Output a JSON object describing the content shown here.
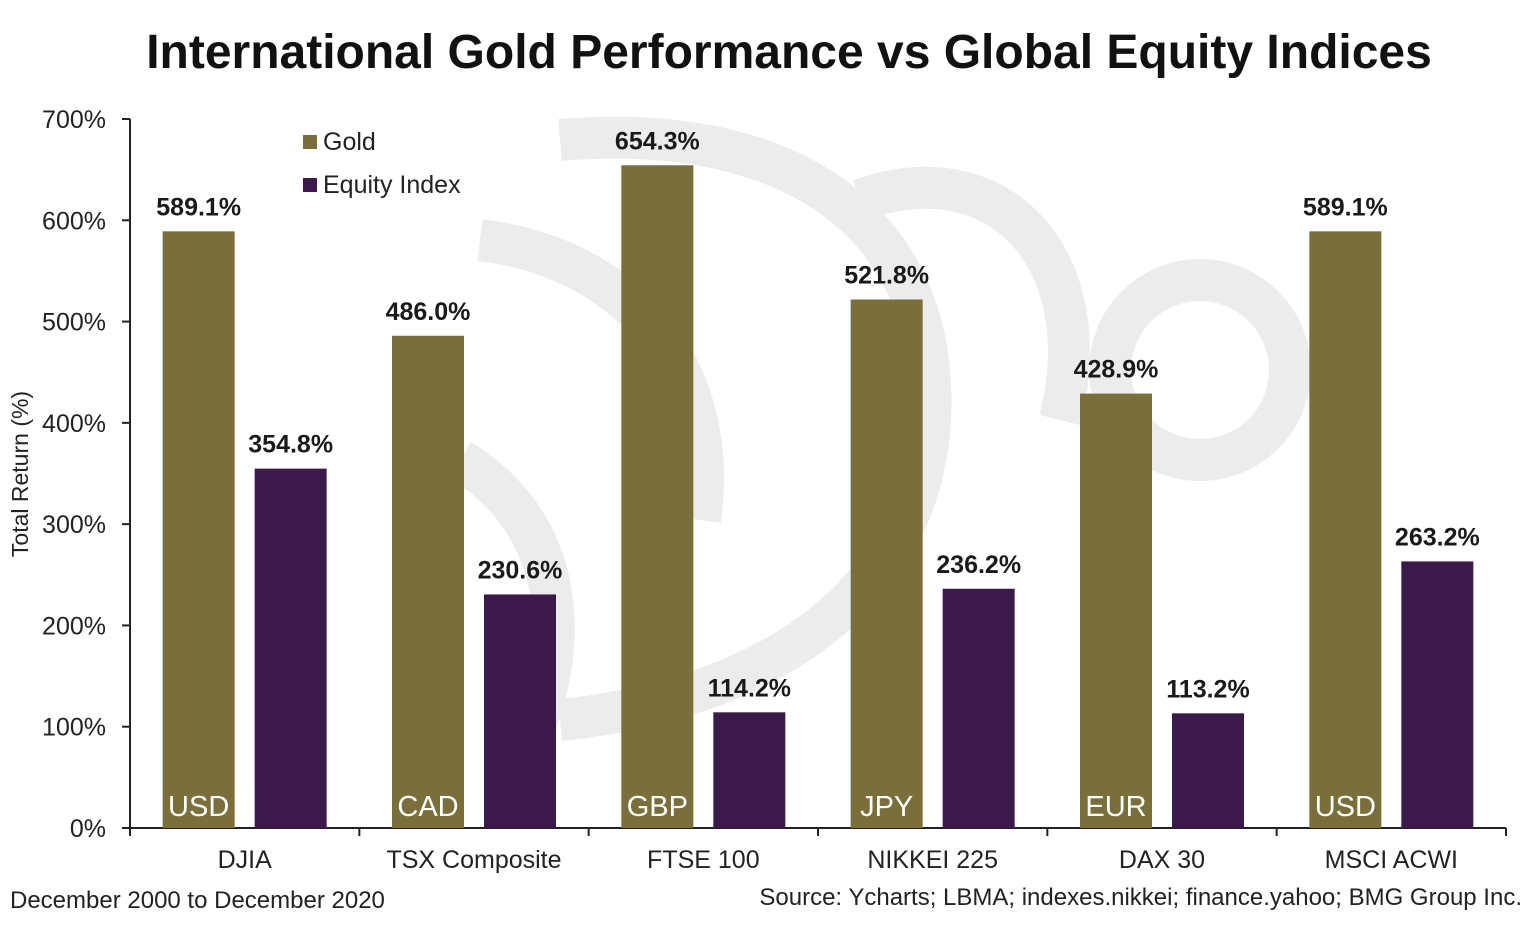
{
  "chart_data": {
    "type": "bar",
    "title": "International Gold Performance vs Global Equity Indices",
    "ylabel": "Total Return (%)",
    "xlabel": "",
    "ylim": [
      0,
      700
    ],
    "yticks": [
      0,
      100,
      200,
      300,
      400,
      500,
      600,
      700
    ],
    "ytick_labels": [
      "0%",
      "100%",
      "200%",
      "300%",
      "400%",
      "500%",
      "600%",
      "700%"
    ],
    "categories": [
      "DJIA",
      "TSX Composite",
      "FTSE 100",
      "NIKKEI 225",
      "DAX 30",
      "MSCI ACWI"
    ],
    "currencies": [
      "USD",
      "CAD",
      "GBP",
      "JPY",
      "EUR",
      "USD"
    ],
    "series": [
      {
        "name": "Gold",
        "color": "#7a6f3a",
        "values": [
          589.1,
          486.0,
          654.3,
          521.8,
          428.9,
          589.1
        ],
        "labels": [
          "589.1%",
          "486.0%",
          "654.3%",
          "521.8%",
          "428.9%",
          "589.1%"
        ]
      },
      {
        "name": "Equity Index",
        "color": "#3b1a4b",
        "values": [
          354.8,
          230.6,
          114.2,
          236.2,
          113.2,
          263.2
        ],
        "labels": [
          "354.8%",
          "230.6%",
          "114.2%",
          "236.2%",
          "113.2%",
          "263.2%"
        ]
      }
    ],
    "legend_position": "top-left",
    "grid": false
  },
  "footer": {
    "left": "December 2000 to December 2020",
    "right": "Source: Ycharts; LBMA; indexes.nikkei; finance.yahoo; BMG Group Inc."
  }
}
